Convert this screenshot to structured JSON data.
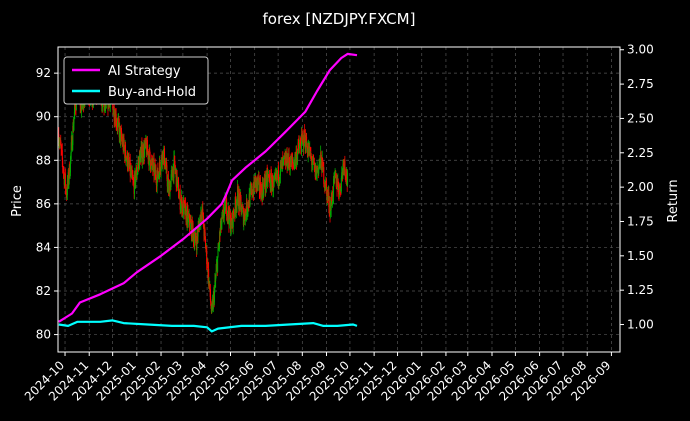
{
  "chart_data": {
    "type": "line",
    "title": "forex [NZDJPY.FXCM]",
    "ylabel": "Price",
    "y2label": "Return",
    "grid": true,
    "legend_position": "top-left",
    "background": "#000000",
    "x_ticks": [
      "2024-10",
      "2024-11",
      "2024-12",
      "2025-01",
      "2025-02",
      "2025-03",
      "2025-04",
      "2025-05",
      "2025-06",
      "2025-07",
      "2025-08",
      "2025-09",
      "2025-10",
      "2025-11",
      "2025-12",
      "2026-01",
      "2026-02",
      "2026-03",
      "2026-04",
      "2026-05",
      "2026-06",
      "2026-07",
      "2026-08",
      "2026-09"
    ],
    "xlim": [
      "2024-09-22",
      "2026-09-12"
    ],
    "ylim": [
      79.2,
      93.2
    ],
    "y_ticks": [
      80,
      82,
      84,
      86,
      88,
      90,
      92
    ],
    "y2lim": [
      0.8,
      3.02
    ],
    "y2_ticks": [
      "1.00",
      "1.25",
      "1.50",
      "1.75",
      "2.00",
      "2.25",
      "2.50",
      "2.75",
      "3.00"
    ],
    "candles": {
      "up_color": "#00aa00",
      "down_color": "#ff0000",
      "close_path": [
        [
          "2024-09-23",
          89.2
        ],
        [
          "2024-09-28",
          87.8
        ],
        [
          "2024-10-03",
          86.5
        ],
        [
          "2024-10-07",
          87.6
        ],
        [
          "2024-10-12",
          89.8
        ],
        [
          "2024-10-17",
          91.3
        ],
        [
          "2024-10-22",
          90.4
        ],
        [
          "2024-10-28",
          91.4
        ],
        [
          "2024-11-05",
          90.7
        ],
        [
          "2024-11-12",
          91.3
        ],
        [
          "2024-11-20",
          90.5
        ],
        [
          "2024-11-28",
          90.9
        ],
        [
          "2024-12-05",
          90.0
        ],
        [
          "2024-12-12",
          89.0
        ],
        [
          "2024-12-20",
          88.0
        ],
        [
          "2024-12-28",
          86.8
        ],
        [
          "2025-01-05",
          88.2
        ],
        [
          "2025-01-13",
          88.6
        ],
        [
          "2025-01-20",
          87.8
        ],
        [
          "2025-01-27",
          87.2
        ],
        [
          "2025-02-04",
          88.4
        ],
        [
          "2025-02-11",
          86.6
        ],
        [
          "2025-02-18",
          87.8
        ],
        [
          "2025-02-25",
          86.2
        ],
        [
          "2025-03-04",
          85.6
        ],
        [
          "2025-03-11",
          85.0
        ],
        [
          "2025-03-18",
          84.2
        ],
        [
          "2025-03-25",
          85.8
        ],
        [
          "2025-04-01",
          83.4
        ],
        [
          "2025-04-07",
          80.9
        ],
        [
          "2025-04-11",
          82.2
        ],
        [
          "2025-04-18",
          84.8
        ],
        [
          "2025-04-25",
          86.0
        ],
        [
          "2025-05-02",
          85.0
        ],
        [
          "2025-05-10",
          86.4
        ],
        [
          "2025-05-18",
          85.4
        ],
        [
          "2025-05-25",
          86.2
        ],
        [
          "2025-06-02",
          87.0
        ],
        [
          "2025-06-10",
          86.6
        ],
        [
          "2025-06-18",
          87.2
        ],
        [
          "2025-06-26",
          86.8
        ],
        [
          "2025-07-04",
          87.6
        ],
        [
          "2025-07-12",
          88.0
        ],
        [
          "2025-07-20",
          87.8
        ],
        [
          "2025-07-28",
          88.6
        ],
        [
          "2025-08-04",
          89.0
        ],
        [
          "2025-08-11",
          88.2
        ],
        [
          "2025-08-18",
          87.4
        ],
        [
          "2025-08-25",
          88.0
        ],
        [
          "2025-09-01",
          86.6
        ],
        [
          "2025-09-06",
          85.8
        ],
        [
          "2025-09-12",
          87.2
        ],
        [
          "2025-09-18",
          86.6
        ],
        [
          "2025-09-23",
          88.0
        ],
        [
          "2025-09-28",
          87.0
        ]
      ]
    },
    "series": [
      {
        "name": "AI Strategy",
        "color": "#ff00ff",
        "axis": "return",
        "points": [
          [
            "2024-09-23",
            1.02
          ],
          [
            "2024-10-10",
            1.08
          ],
          [
            "2024-10-20",
            1.16
          ],
          [
            "2024-11-15",
            1.22
          ],
          [
            "2024-12-15",
            1.3
          ],
          [
            "2025-01-01",
            1.38
          ],
          [
            "2025-02-01",
            1.5
          ],
          [
            "2025-03-01",
            1.62
          ],
          [
            "2025-04-01",
            1.77
          ],
          [
            "2025-04-20",
            1.88
          ],
          [
            "2025-04-25",
            1.94
          ],
          [
            "2025-05-03",
            2.05
          ],
          [
            "2025-05-20",
            2.14
          ],
          [
            "2025-06-15",
            2.26
          ],
          [
            "2025-07-10",
            2.4
          ],
          [
            "2025-08-05",
            2.55
          ],
          [
            "2025-08-20",
            2.7
          ],
          [
            "2025-09-05",
            2.85
          ],
          [
            "2025-09-20",
            2.94
          ],
          [
            "2025-09-28",
            2.97
          ],
          [
            "2025-10-10",
            2.96
          ]
        ]
      },
      {
        "name": "Buy-and-Hold",
        "color": "#00ffff",
        "axis": "return",
        "points": [
          [
            "2024-09-23",
            1.0
          ],
          [
            "2024-10-05",
            0.99
          ],
          [
            "2024-10-17",
            1.02
          ],
          [
            "2024-11-15",
            1.02
          ],
          [
            "2024-12-01",
            1.03
          ],
          [
            "2024-12-15",
            1.01
          ],
          [
            "2025-01-15",
            1.0
          ],
          [
            "2025-02-15",
            0.99
          ],
          [
            "2025-03-15",
            0.99
          ],
          [
            "2025-04-01",
            0.98
          ],
          [
            "2025-04-07",
            0.95
          ],
          [
            "2025-04-15",
            0.97
          ],
          [
            "2025-05-15",
            0.99
          ],
          [
            "2025-06-15",
            0.99
          ],
          [
            "2025-07-15",
            1.0
          ],
          [
            "2025-08-15",
            1.01
          ],
          [
            "2025-08-28",
            0.99
          ],
          [
            "2025-09-15",
            0.99
          ],
          [
            "2025-10-05",
            1.0
          ],
          [
            "2025-10-10",
            0.99
          ]
        ]
      }
    ]
  }
}
